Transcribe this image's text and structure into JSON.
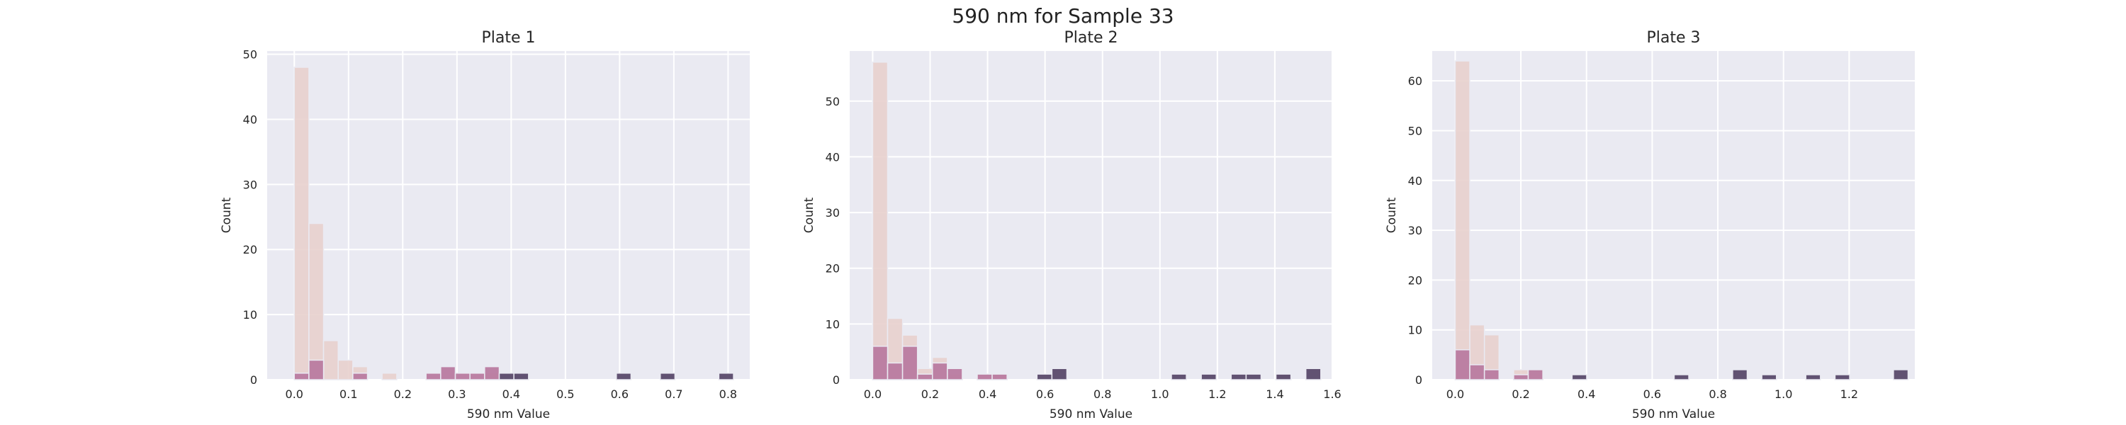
{
  "figure": {
    "title": "590 nm for Sample 33"
  },
  "chart_data": [
    {
      "type": "bar",
      "title": "Plate 1",
      "xlabel": "590 nm Value",
      "ylabel": "Count",
      "xlim": [
        -0.05,
        0.84
      ],
      "ylim": [
        0,
        50.5
      ],
      "xticks": [
        "0.0",
        "0.1",
        "0.2",
        "0.3",
        "0.4",
        "0.5",
        "0.6",
        "0.7",
        "0.8"
      ],
      "xtick_values": [
        0.0,
        0.1,
        0.2,
        0.3,
        0.4,
        0.5,
        0.6,
        0.7,
        0.8
      ],
      "yticks": [
        "0",
        "10",
        "20",
        "30",
        "40",
        "50"
      ],
      "ytick_values": [
        0,
        10,
        20,
        30,
        40,
        50
      ],
      "grid": true,
      "bin_width": 0.027,
      "series": [
        {
          "color": "#e8d0cd",
          "bars": [
            [
              0.0,
              48
            ],
            [
              0.027,
              24
            ],
            [
              0.054,
              6
            ],
            [
              0.081,
              3
            ],
            [
              0.108,
              2
            ],
            [
              0.162,
              1
            ],
            [
              0.351,
              1
            ]
          ]
        },
        {
          "color": "#b97ba0",
          "bars": [
            [
              0.0,
              1
            ],
            [
              0.027,
              3
            ],
            [
              0.108,
              1
            ],
            [
              0.243,
              1
            ],
            [
              0.27,
              2
            ],
            [
              0.297,
              1
            ],
            [
              0.324,
              1
            ],
            [
              0.351,
              2
            ]
          ]
        },
        {
          "color": "#5a4a6a",
          "bars": [
            [
              0.378,
              1
            ],
            [
              0.405,
              1
            ],
            [
              0.594,
              1
            ],
            [
              0.675,
              1
            ],
            [
              0.783,
              1
            ]
          ]
        }
      ]
    },
    {
      "type": "bar",
      "title": "Plate 2",
      "xlabel": "590 nm Value",
      "ylabel": "Count",
      "xlim": [
        -0.08,
        1.6
      ],
      "ylim": [
        0,
        59
      ],
      "xticks": [
        "0.0",
        "0.2",
        "0.4",
        "0.6",
        "0.8",
        "1.0",
        "1.2",
        "1.4",
        "1.6"
      ],
      "xtick_values": [
        0.0,
        0.2,
        0.4,
        0.6,
        0.8,
        1.0,
        1.2,
        1.4,
        1.6
      ],
      "yticks": [
        "0",
        "10",
        "20",
        "30",
        "40",
        "50"
      ],
      "ytick_values": [
        0,
        10,
        20,
        30,
        40,
        50
      ],
      "grid": true,
      "bin_width": 0.052,
      "series": [
        {
          "color": "#e8d0cd",
          "bars": [
            [
              0.0,
              57
            ],
            [
              0.052,
              11
            ],
            [
              0.104,
              8
            ],
            [
              0.156,
              2
            ],
            [
              0.208,
              4
            ],
            [
              0.26,
              1
            ],
            [
              0.364,
              1
            ],
            [
              0.416,
              1
            ],
            [
              1.404,
              1
            ]
          ]
        },
        {
          "color": "#b97ba0",
          "bars": [
            [
              0.0,
              6
            ],
            [
              0.052,
              3
            ],
            [
              0.104,
              6
            ],
            [
              0.156,
              1
            ],
            [
              0.208,
              3
            ],
            [
              0.26,
              2
            ],
            [
              0.364,
              1
            ],
            [
              0.416,
              1
            ]
          ]
        },
        {
          "color": "#5a4a6a",
          "bars": [
            [
              0.572,
              1
            ],
            [
              0.624,
              2
            ],
            [
              1.04,
              1
            ],
            [
              1.144,
              1
            ],
            [
              1.248,
              1
            ],
            [
              1.3,
              1
            ],
            [
              1.404,
              1
            ],
            [
              1.508,
              2
            ]
          ]
        }
      ]
    },
    {
      "type": "bar",
      "title": "Plate 3",
      "xlabel": "590 nm Value",
      "ylabel": "Count",
      "xlim": [
        -0.07,
        1.4
      ],
      "ylim": [
        0,
        66
      ],
      "xticks": [
        "0.0",
        "0.2",
        "0.4",
        "0.6",
        "0.8",
        "1.0",
        "1.2"
      ],
      "xtick_values": [
        0.0,
        0.2,
        0.4,
        0.6,
        0.8,
        1.0,
        1.2
      ],
      "yticks": [
        "0",
        "10",
        "20",
        "30",
        "40",
        "50",
        "60"
      ],
      "ytick_values": [
        0,
        10,
        20,
        30,
        40,
        50,
        60
      ],
      "grid": true,
      "bin_width": 0.0445,
      "series": [
        {
          "color": "#e8d0cd",
          "bars": [
            [
              0.0,
              64
            ],
            [
              0.0445,
              11
            ],
            [
              0.089,
              9
            ],
            [
              0.178,
              2
            ],
            [
              0.2225,
              2
            ]
          ]
        },
        {
          "color": "#b97ba0",
          "bars": [
            [
              0.0,
              6
            ],
            [
              0.0445,
              3
            ],
            [
              0.089,
              2
            ],
            [
              0.178,
              1
            ],
            [
              0.2225,
              2
            ]
          ]
        },
        {
          "color": "#5a4a6a",
          "bars": [
            [
              0.356,
              1
            ],
            [
              0.667,
              1
            ],
            [
              0.845,
              2
            ],
            [
              0.934,
              1
            ],
            [
              1.068,
              1
            ],
            [
              1.157,
              1
            ],
            [
              1.335,
              2
            ]
          ]
        }
      ]
    }
  ]
}
